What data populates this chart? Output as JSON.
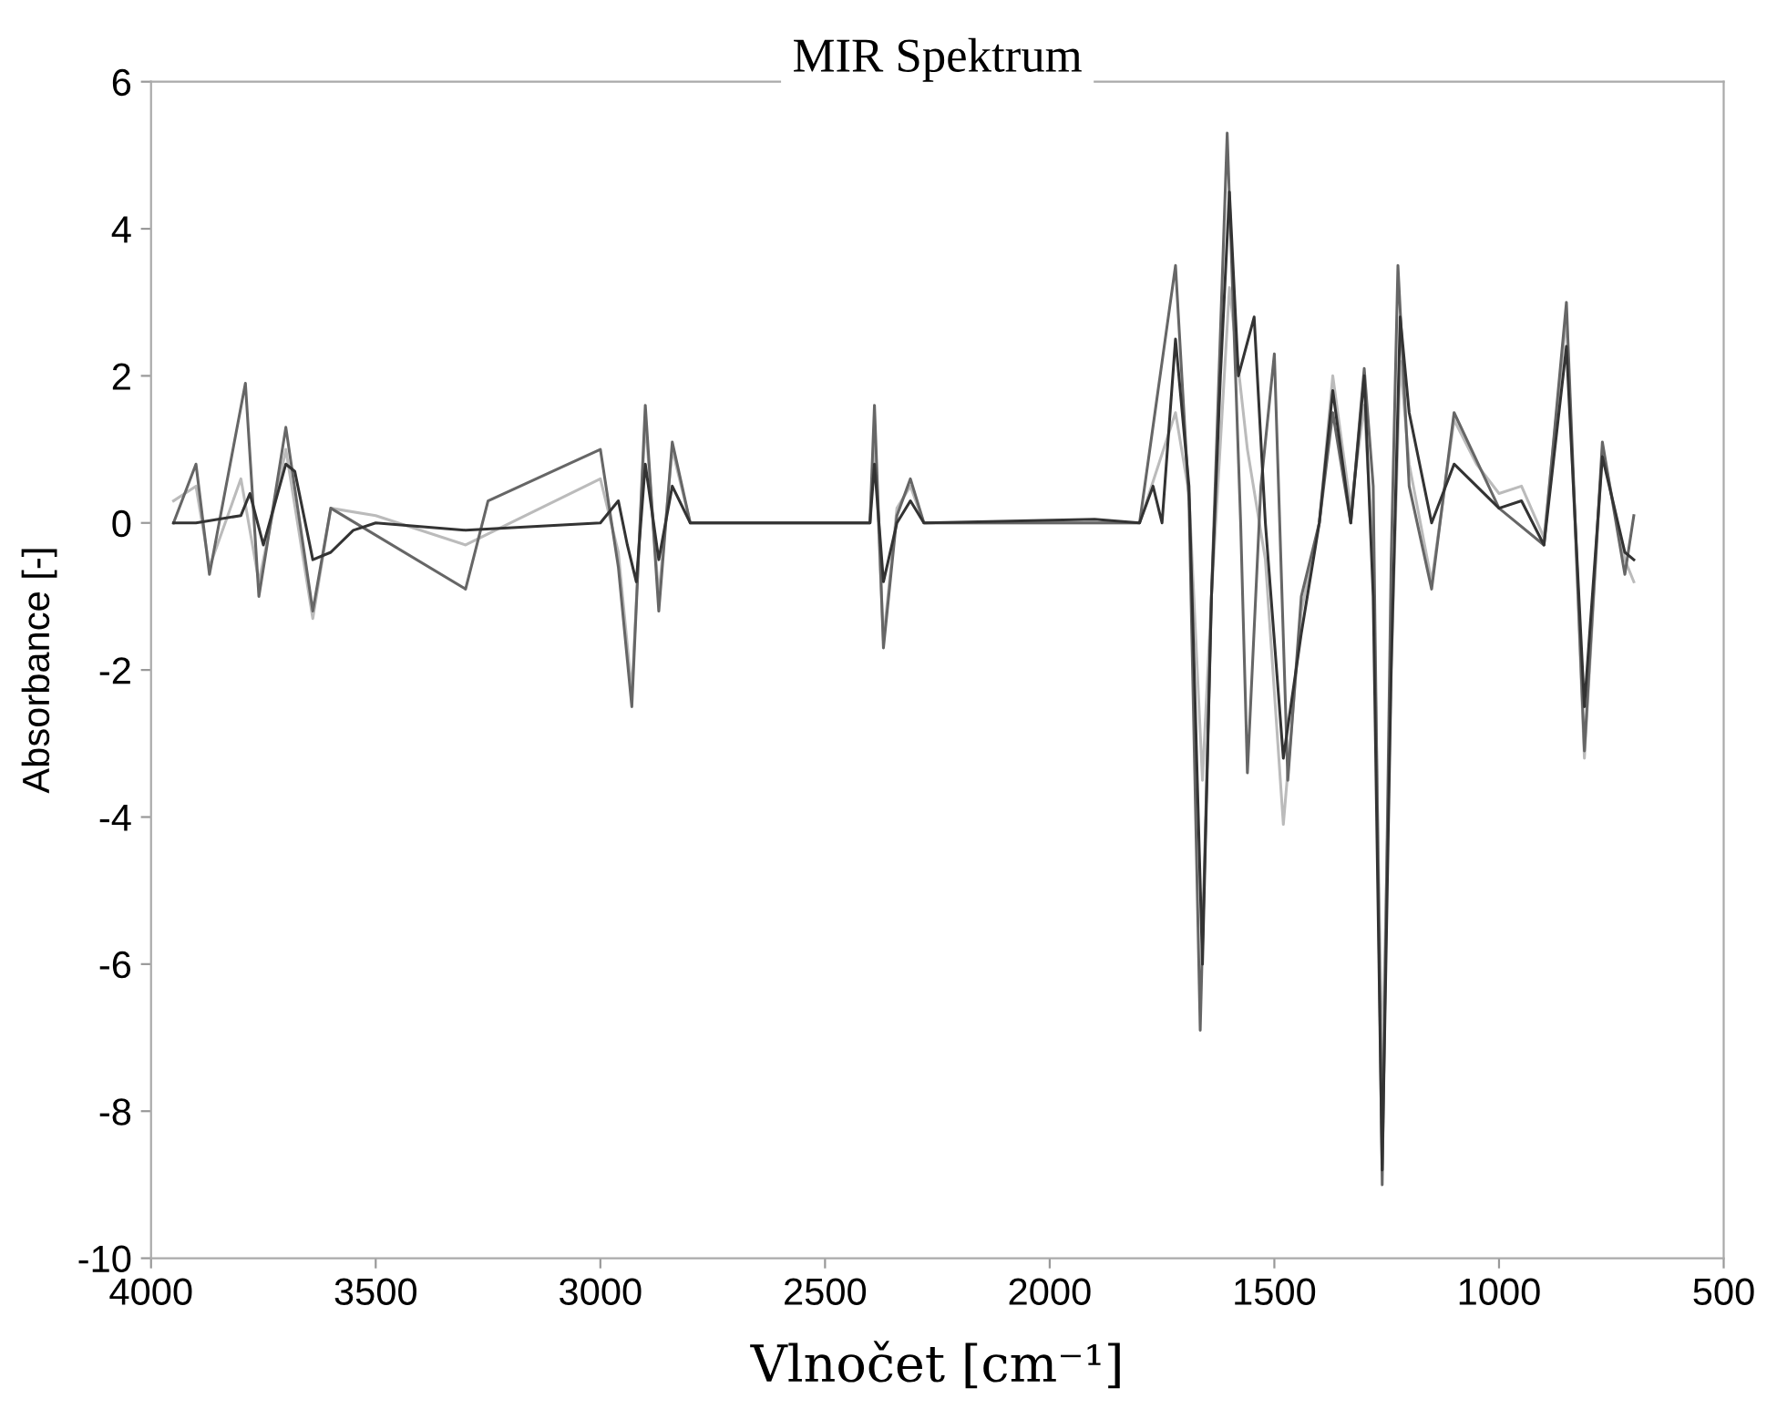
{
  "chart_data": {
    "type": "line",
    "title": "MIR Spektrum",
    "xlabel": "Vlnočet [cm⁻¹]",
    "ylabel": "Absorbance [-]",
    "xlim": [
      4000,
      500
    ],
    "xticks": [
      4000,
      3500,
      3000,
      2500,
      2000,
      1500,
      1000,
      500
    ],
    "ylim": [
      -10,
      6
    ],
    "yticks": [
      -10,
      -8,
      -6,
      -4,
      -2,
      0,
      2,
      4,
      6
    ],
    "grid": false,
    "legend": false,
    "marker": "none",
    "line_style": "solid",
    "series": [
      {
        "color": "#bbbbbb",
        "x": [
          3950,
          3900,
          3870,
          3800,
          3760,
          3700,
          3640,
          3600,
          3500,
          3300,
          3000,
          2960,
          2930,
          2900,
          2870,
          2840,
          2800,
          2400,
          2390,
          2370,
          2340,
          2310,
          2280,
          1800,
          1720,
          1690,
          1660,
          1640,
          1600,
          1560,
          1520,
          1480,
          1440,
          1400,
          1370,
          1330,
          1300,
          1280,
          1260,
          1240,
          1220,
          1200,
          1150,
          1100,
          1050,
          1000,
          950,
          900,
          850,
          810,
          770,
          720,
          700
        ],
        "values": [
          0.3,
          0.5,
          -0.6,
          0.6,
          -0.8,
          1.0,
          -1.3,
          0.2,
          0.1,
          -0.3,
          0.6,
          -0.4,
          -2.3,
          1.4,
          -1.0,
          1.0,
          0,
          0,
          1.2,
          -1.6,
          0.2,
          0.5,
          0,
          0,
          1.5,
          0.4,
          -3.5,
          -1.0,
          3.2,
          1.0,
          -0.5,
          -4.1,
          -1.2,
          0,
          2.0,
          0.2,
          1.6,
          -0.5,
          -7.5,
          -2.0,
          2.2,
          0.8,
          -0.8,
          1.4,
          0.8,
          0.4,
          0.5,
          -0.2,
          2.8,
          -3.2,
          1.0,
          -0.5,
          -0.8
        ]
      },
      {
        "color": "#666666",
        "x": [
          3950,
          3900,
          3870,
          3790,
          3760,
          3700,
          3640,
          3600,
          3300,
          3250,
          3000,
          2960,
          2930,
          2900,
          2870,
          2840,
          2800,
          2400,
          2390,
          2370,
          2340,
          2310,
          2280,
          1800,
          1720,
          1690,
          1665,
          1640,
          1605,
          1575,
          1560,
          1530,
          1500,
          1470,
          1440,
          1400,
          1370,
          1330,
          1300,
          1280,
          1260,
          1240,
          1225,
          1200,
          1150,
          1100,
          1000,
          900,
          850,
          810,
          770,
          720,
          700
        ],
        "values": [
          0,
          0.8,
          -0.7,
          1.9,
          -1.0,
          1.3,
          -1.2,
          0.2,
          -0.9,
          0.3,
          1.0,
          -0.6,
          -2.5,
          1.6,
          -1.2,
          1.1,
          0,
          0,
          1.6,
          -1.7,
          0.1,
          0.6,
          0,
          0,
          3.5,
          0.3,
          -6.9,
          -1.0,
          5.3,
          0,
          -3.4,
          0.5,
          2.3,
          -3.5,
          -1.0,
          0,
          1.5,
          0,
          2.1,
          0.5,
          -9.0,
          -0.5,
          3.5,
          0.5,
          -0.9,
          1.5,
          0.2,
          -0.3,
          3.0,
          -3.1,
          1.1,
          -0.7,
          0.1
        ]
      },
      {
        "color": "#333333",
        "x": [
          3950,
          3900,
          3800,
          3780,
          3750,
          3700,
          3680,
          3640,
          3600,
          3550,
          3500,
          3300,
          3000,
          2960,
          2940,
          2920,
          2900,
          2870,
          2840,
          2800,
          2400,
          2390,
          2370,
          2340,
          2310,
          2280,
          1900,
          1800,
          1770,
          1750,
          1720,
          1690,
          1660,
          1640,
          1620,
          1600,
          1580,
          1545,
          1520,
          1480,
          1440,
          1400,
          1370,
          1330,
          1300,
          1280,
          1260,
          1240,
          1220,
          1200,
          1150,
          1100,
          1050,
          1000,
          950,
          900,
          850,
          810,
          770,
          720,
          700
        ],
        "values": [
          0,
          0,
          0.1,
          0.4,
          -0.3,
          0.8,
          0.7,
          -0.5,
          -0.4,
          -0.1,
          0,
          -0.1,
          0,
          0.3,
          -0.3,
          -0.8,
          0.8,
          -0.5,
          0.5,
          0,
          0,
          0.8,
          -0.8,
          0,
          0.3,
          0,
          0.05,
          0,
          0.5,
          0,
          2.5,
          0.5,
          -6.0,
          -1.0,
          2.0,
          4.5,
          2.0,
          2.8,
          0,
          -3.2,
          -1.5,
          0,
          1.8,
          0,
          2.0,
          -1.0,
          -8.8,
          -2.0,
          2.8,
          1.5,
          0,
          0.8,
          0.5,
          0.2,
          0.3,
          -0.3,
          2.4,
          -2.5,
          0.9,
          -0.4,
          -0.5
        ]
      }
    ]
  }
}
